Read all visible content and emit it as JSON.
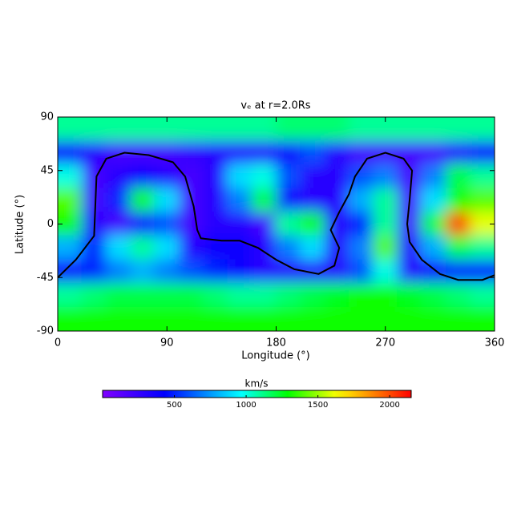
{
  "chart_data": {
    "type": "heatmap",
    "title": "vₑ at r=2.0Rs",
    "xlabel": "Longitude (°)",
    "ylabel": "Latitude (°)",
    "xlim": [
      0,
      360
    ],
    "ylim": [
      -90,
      90
    ],
    "xticks": [
      0,
      90,
      180,
      270,
      360
    ],
    "yticks": [
      -90,
      -45,
      0,
      45,
      90
    ],
    "x": [
      10,
      30,
      50,
      70,
      90,
      110,
      130,
      150,
      170,
      190,
      210,
      230,
      250,
      270,
      290,
      310,
      330,
      350
    ],
    "y": [
      80,
      60,
      40,
      20,
      0,
      -20,
      -40,
      -60,
      -80
    ],
    "z": [
      [
        1100,
        1100,
        1100,
        1100,
        1100,
        1100,
        1100,
        1100,
        1100,
        1150,
        1150,
        1150,
        1100,
        1100,
        1100,
        1100,
        1100,
        1100
      ],
      [
        400,
        300,
        200,
        200,
        200,
        250,
        300,
        300,
        300,
        400,
        600,
        300,
        200,
        200,
        200,
        200,
        300,
        400
      ],
      [
        1000,
        200,
        300,
        400,
        300,
        200,
        300,
        900,
        1000,
        600,
        300,
        300,
        600,
        700,
        200,
        700,
        1200,
        1100
      ],
      [
        1400,
        200,
        500,
        1300,
        900,
        200,
        300,
        700,
        1200,
        400,
        300,
        300,
        800,
        1100,
        200,
        900,
        1300,
        1400
      ],
      [
        1300,
        300,
        200,
        400,
        600,
        200,
        300,
        300,
        200,
        1100,
        1300,
        300,
        500,
        1100,
        200,
        1200,
        2000,
        1600
      ],
      [
        800,
        500,
        900,
        1100,
        900,
        300,
        400,
        400,
        300,
        700,
        900,
        300,
        700,
        1400,
        300,
        800,
        1200,
        1100
      ],
      [
        400,
        500,
        700,
        800,
        700,
        600,
        500,
        400,
        300,
        300,
        300,
        300,
        600,
        1000,
        300,
        400,
        500,
        500
      ],
      [
        1100,
        1150,
        1200,
        1200,
        1200,
        1200,
        1150,
        1100,
        1100,
        1150,
        1200,
        1250,
        1300,
        1300,
        1250,
        1200,
        1150,
        1100
      ],
      [
        1300,
        1300,
        1300,
        1300,
        1300,
        1300,
        1300,
        1300,
        1300,
        1300,
        1300,
        1300,
        1300,
        1300,
        1300,
        1300,
        1300,
        1300
      ]
    ],
    "contour": {
      "x": [
        0,
        15,
        30,
        32,
        40,
        55,
        75,
        95,
        105,
        112,
        115,
        118,
        135,
        150,
        165,
        180,
        195,
        215,
        228,
        232,
        225,
        232,
        240,
        245,
        255,
        270,
        285,
        292,
        290,
        288,
        290,
        300,
        315,
        330,
        350,
        360
      ],
      "y": [
        -45,
        -30,
        -10,
        40,
        55,
        60,
        58,
        52,
        40,
        15,
        -5,
        -12,
        -14,
        -14,
        -20,
        -30,
        -38,
        -42,
        -35,
        -20,
        -5,
        10,
        25,
        40,
        55,
        60,
        55,
        45,
        20,
        0,
        -15,
        -30,
        -42,
        -47,
        -47,
        -43
      ],
      "color": "#000000"
    },
    "colorbar": {
      "label": "km/s",
      "lim": [
        0,
        2150
      ],
      "ticks": [
        500,
        1000,
        1500,
        2000
      ]
    }
  }
}
